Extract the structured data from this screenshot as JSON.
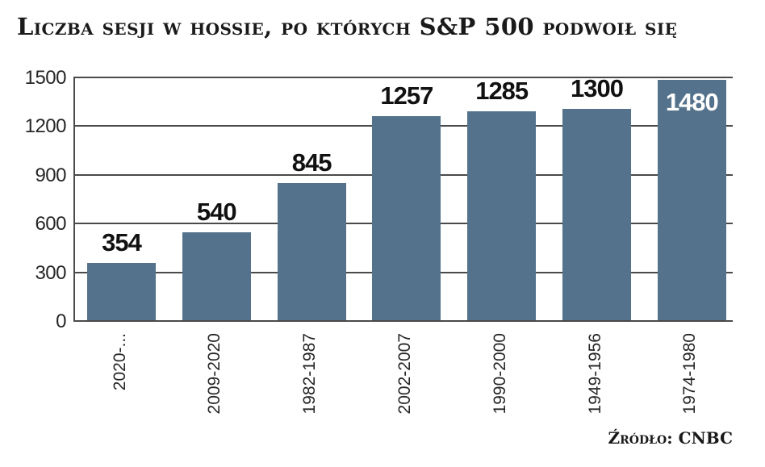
{
  "title": "Liczba sesji w hossie, po których S&P 500 podwoił się",
  "source": "Źródło: CNBC",
  "chart_data": {
    "type": "bar",
    "title": "Liczba sesji w hossie, po których S&P 500 podwoił się",
    "categories": [
      "2020-...",
      "2009-2020",
      "1982-1987",
      "2002-2007",
      "1990-2000",
      "1949-1956",
      "1974-1980"
    ],
    "values": [
      354,
      540,
      845,
      1257,
      1285,
      1300,
      1480
    ],
    "value_labels": [
      "354",
      "540",
      "845",
      "1257",
      "1285",
      "1300",
      "1480"
    ],
    "value_label_inside_bar": [
      false,
      false,
      false,
      false,
      false,
      false,
      true
    ],
    "yticks": [
      0,
      300,
      600,
      900,
      1200,
      1500
    ],
    "ylim": [
      0,
      1500
    ],
    "xlabel": "",
    "ylabel": "",
    "grid": true,
    "legend": false,
    "source": "Źródło: CNBC",
    "colors": {
      "bar": "#54728b",
      "gridline": "#4a4a4a",
      "axis": "#4a4a4a",
      "value_label": "#111111",
      "value_label_inside": "#ffffff",
      "tick_label": "#262626",
      "title": "#1a1a1a",
      "background": "#ffffff"
    }
  }
}
